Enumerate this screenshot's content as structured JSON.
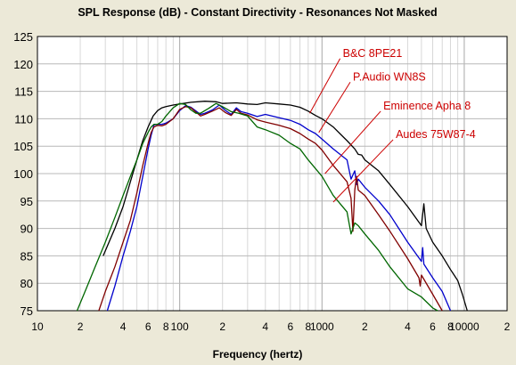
{
  "chart_data": {
    "type": "line",
    "title": "SPL Response (dB) - Constant Directivity - Resonances Not Masked",
    "xlabel": "Frequency (hertz)",
    "ylabel": "",
    "x_scale": "log",
    "xlim": [
      10,
      20000
    ],
    "ylim": [
      75,
      125
    ],
    "grid": true,
    "x_tick_labels": [
      {
        "value": 10,
        "label": "10"
      },
      {
        "value": 20,
        "label": "2"
      },
      {
        "value": 40,
        "label": "4"
      },
      {
        "value": 60,
        "label": "6"
      },
      {
        "value": 80,
        "label": "8"
      },
      {
        "value": 100,
        "label": "100"
      },
      {
        "value": 200,
        "label": "2"
      },
      {
        "value": 400,
        "label": "4"
      },
      {
        "value": 600,
        "label": "6"
      },
      {
        "value": 800,
        "label": "8"
      },
      {
        "value": 1000,
        "label": "1000"
      },
      {
        "value": 2000,
        "label": "2"
      },
      {
        "value": 4000,
        "label": "4"
      },
      {
        "value": 6000,
        "label": "6"
      },
      {
        "value": 8000,
        "label": "8"
      },
      {
        "value": 10000,
        "label": "10000"
      },
      {
        "value": 20000,
        "label": "2"
      }
    ],
    "y_ticks": [
      75,
      80,
      85,
      90,
      95,
      100,
      105,
      110,
      115,
      120,
      125
    ],
    "annotation_color": "#cc0000",
    "series": [
      {
        "name": "B&C  8PE21",
        "color": "#000000",
        "label_pos": {
          "x": 1400,
          "y": 121.3
        },
        "label_anchor": {
          "x": 820,
          "y": 111
        },
        "x": [
          29,
          35,
          40,
          45,
          50,
          55,
          60,
          65,
          70,
          75,
          80,
          90,
          100,
          120,
          150,
          180,
          200,
          250,
          300,
          350,
          400,
          500,
          600,
          700,
          800,
          900,
          1000,
          1200,
          1500,
          1700,
          1800,
          1900,
          2000,
          2500,
          3000,
          4000,
          5000,
          5200,
          5400,
          6000,
          7000,
          8000,
          9000,
          9700,
          10500
        ],
        "values": [
          85,
          90,
          94,
          98.5,
          102.5,
          106,
          108.5,
          110.5,
          111.5,
          112,
          112.2,
          112.5,
          112.7,
          113,
          113.2,
          113.1,
          112.8,
          112.9,
          112.7,
          112.6,
          112.9,
          112.7,
          112.5,
          112.1,
          111.4,
          110.6,
          110,
          108.5,
          106,
          104.5,
          103.5,
          103.4,
          102.5,
          100.5,
          98,
          94,
          90.5,
          94.5,
          90,
          87.5,
          85,
          82.5,
          80.5,
          78,
          75
        ]
      },
      {
        "name": "P.Audio WN8S",
        "color": "#0000cc",
        "label_pos": {
          "x": 1650,
          "y": 117
        },
        "label_anchor": {
          "x": 950,
          "y": 107.5
        },
        "x": [
          31,
          35,
          40,
          45,
          50,
          55,
          60,
          63,
          66,
          70,
          75,
          80,
          90,
          100,
          110,
          120,
          140,
          150,
          170,
          190,
          210,
          230,
          250,
          270,
          300,
          350,
          400,
          500,
          600,
          700,
          800,
          900,
          1000,
          1200,
          1500,
          1600,
          1700,
          1750,
          1800,
          2000,
          2500,
          3000,
          4000,
          5000,
          5100,
          5200,
          6000,
          7000,
          8000
        ],
        "values": [
          75,
          79.5,
          85,
          89.5,
          94,
          99.5,
          104.5,
          107,
          108.9,
          109,
          109,
          109.2,
          110,
          111.5,
          112.4,
          112.1,
          110.8,
          111,
          111.6,
          112.5,
          111.5,
          110.8,
          112,
          111.3,
          111,
          110.4,
          110.8,
          110.2,
          109.7,
          109,
          108,
          107.3,
          106.3,
          104.5,
          102.5,
          99,
          100.5,
          98,
          99,
          97.5,
          95,
          92.5,
          87.5,
          84,
          86.5,
          83.5,
          81,
          78.5,
          75
        ]
      },
      {
        "name": "Eminence Apha 8",
        "color": "#800000",
        "label_pos": {
          "x": 2700,
          "y": 111.7
        },
        "label_anchor": {
          "x": 1050,
          "y": 100
        },
        "x": [
          27,
          30,
          35,
          40,
          45,
          50,
          55,
          60,
          63,
          66,
          70,
          75,
          80,
          90,
          100,
          110,
          120,
          140,
          150,
          170,
          190,
          210,
          230,
          250,
          270,
          300,
          350,
          400,
          500,
          600,
          700,
          800,
          900,
          1000,
          1200,
          1500,
          1600,
          1650,
          1700,
          1750,
          1800,
          2000,
          2500,
          3000,
          4000,
          4800,
          4900,
          5000,
          6000,
          7000
        ],
        "values": [
          75,
          78.5,
          83,
          87.5,
          91.5,
          96.5,
          101.5,
          105.5,
          107.5,
          108.5,
          108.8,
          108.7,
          109,
          110,
          111.7,
          112.2,
          112,
          110.5,
          110.8,
          111.4,
          112,
          111.1,
          110.6,
          111.7,
          111,
          110.7,
          109.8,
          109.4,
          108.8,
          108.2,
          107.3,
          106.3,
          105.5,
          104.3,
          101.5,
          98.5,
          95.5,
          89.5,
          97,
          99.5,
          97,
          96,
          92.5,
          89.5,
          84.5,
          81,
          79.5,
          81.5,
          78,
          75
        ]
      },
      {
        "name": "Audes 75W87-4",
        "color": "#006600",
        "label_pos": {
          "x": 3300,
          "y": 106.5
        },
        "label_anchor": {
          "x": 1200,
          "y": 94.8
        },
        "x": [
          19,
          22,
          25,
          30,
          35,
          40,
          45,
          50,
          55,
          60,
          63,
          66,
          70,
          75,
          80,
          90,
          100,
          110,
          120,
          130,
          140,
          160,
          180,
          200,
          230,
          260,
          300,
          350,
          400,
          500,
          600,
          700,
          800,
          1000,
          1200,
          1500,
          1600,
          1700,
          1800,
          2000,
          2500,
          3000,
          4000,
          5000,
          6000,
          6500
        ],
        "values": [
          75,
          79,
          82.5,
          87.5,
          92,
          96,
          99.5,
          102.5,
          105.5,
          107.5,
          108.5,
          109,
          109,
          109.5,
          110.5,
          112,
          112.8,
          112.6,
          111.6,
          111,
          111,
          111.9,
          112.8,
          112.2,
          111.3,
          111,
          110.5,
          108.5,
          108,
          107,
          105.5,
          104.5,
          102.5,
          99.5,
          96,
          93,
          89,
          91,
          90.5,
          89,
          86,
          83,
          79,
          77.5,
          75.5,
          75
        ]
      }
    ]
  }
}
